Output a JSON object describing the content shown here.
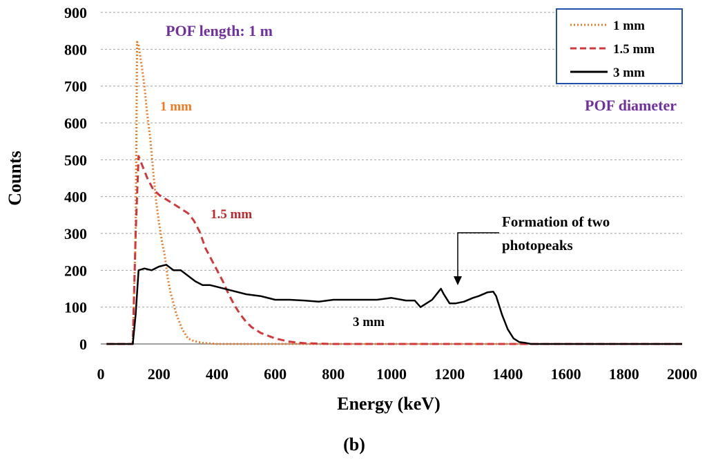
{
  "chart_data": {
    "type": "line",
    "title": "",
    "xlabel": "Energy (keV)",
    "ylabel": "Counts",
    "xlim": [
      0,
      2000
    ],
    "ylim": [
      0,
      900
    ],
    "xticks": [
      "0",
      "200",
      "400",
      "600",
      "800",
      "1000",
      "1200",
      "1400",
      "1600",
      "1800",
      "2000"
    ],
    "yticks": [
      "0",
      "100",
      "200",
      "300",
      "400",
      "500",
      "600",
      "700",
      "800",
      "900"
    ],
    "grid": "horizontal dashed",
    "legend_title": "POF diameter",
    "legend_position": "top-right",
    "series": [
      {
        "name": "1 mm",
        "style": "dotted",
        "color": "#f07820",
        "x": [
          20,
          110,
          120,
          125,
          130,
          140,
          150,
          160,
          170,
          180,
          190,
          200,
          210,
          220,
          230,
          240,
          250,
          260,
          280,
          300,
          320,
          350,
          400,
          450,
          500,
          600,
          700,
          800,
          1000,
          1400,
          2000
        ],
        "y": [
          0,
          0,
          300,
          820,
          810,
          760,
          700,
          620,
          560,
          470,
          390,
          330,
          280,
          240,
          180,
          140,
          110,
          80,
          40,
          15,
          8,
          3,
          0,
          0,
          0,
          0,
          0,
          0,
          0,
          0,
          0
        ]
      },
      {
        "name": "1.5 mm",
        "style": "dashed",
        "color": "#d2373c",
        "x": [
          20,
          110,
          120,
          130,
          140,
          160,
          180,
          200,
          220,
          250,
          280,
          300,
          320,
          340,
          360,
          380,
          400,
          420,
          440,
          460,
          480,
          500,
          520,
          550,
          600,
          650,
          700,
          800,
          1000,
          1200,
          1400,
          2000
        ],
        "y": [
          0,
          0,
          300,
          510,
          490,
          450,
          420,
          405,
          395,
          380,
          365,
          355,
          335,
          305,
          260,
          230,
          200,
          170,
          135,
          105,
          80,
          60,
          45,
          30,
          15,
          6,
          2,
          0,
          0,
          0,
          0,
          0
        ]
      },
      {
        "name": "3 mm",
        "style": "solid",
        "color": "#000000",
        "x": [
          20,
          110,
          120,
          130,
          150,
          175,
          200,
          225,
          250,
          275,
          300,
          325,
          350,
          375,
          400,
          450,
          500,
          550,
          600,
          650,
          700,
          750,
          800,
          850,
          900,
          950,
          1000,
          1050,
          1080,
          1100,
          1120,
          1140,
          1160,
          1170,
          1180,
          1200,
          1220,
          1250,
          1280,
          1300,
          1330,
          1350,
          1360,
          1380,
          1400,
          1420,
          1440,
          1460,
          1480,
          1500,
          2000
        ],
        "y": [
          0,
          0,
          80,
          200,
          205,
          200,
          210,
          215,
          200,
          200,
          185,
          170,
          160,
          160,
          155,
          145,
          135,
          130,
          120,
          120,
          118,
          115,
          120,
          120,
          120,
          120,
          125,
          118,
          118,
          100,
          110,
          120,
          140,
          150,
          135,
          110,
          110,
          115,
          125,
          130,
          140,
          142,
          130,
          80,
          40,
          15,
          5,
          3,
          0,
          0,
          0
        ]
      }
    ],
    "annotations": [
      {
        "text": "POF length: 1 m",
        "color": "#7030a0"
      },
      {
        "text": "1 mm",
        "color": "#f07820"
      },
      {
        "text": "1.5 mm",
        "color": "#c0282d"
      },
      {
        "text": "3 mm",
        "color": "#000000"
      },
      {
        "text": "Formation of two",
        "color": "#000000"
      },
      {
        "text": "photopeaks",
        "color": "#000000"
      }
    ],
    "caption": "(b)"
  },
  "colors": {
    "legend_border": "#1f4fa8",
    "grid": "#a0a0a0",
    "axis": "#808080",
    "legend_title": "#7030a0"
  }
}
